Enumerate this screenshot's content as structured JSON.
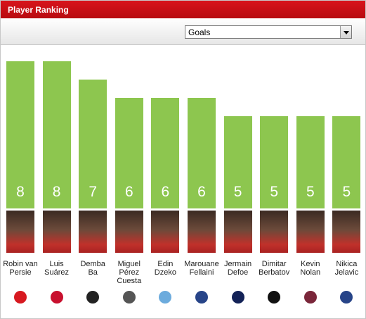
{
  "chart_data": {
    "type": "bar",
    "title": "Player Ranking",
    "selected_stat": "Goals",
    "categories": [
      "Robin van\nPersie",
      "Luis\nSuárez",
      "Demba\nBa",
      "Miguel\nPérez\nCuesta",
      "Edin\nDzeko",
      "Marouane\nFellaini",
      "Jermain\nDefoe",
      "Dimitar\nBerbatov",
      "Kevin\nNolan",
      "Nikica\nJelavic"
    ],
    "values": [
      8,
      8,
      7,
      6,
      6,
      6,
      5,
      5,
      5,
      5
    ],
    "color": "#8dc64f"
  }
}
